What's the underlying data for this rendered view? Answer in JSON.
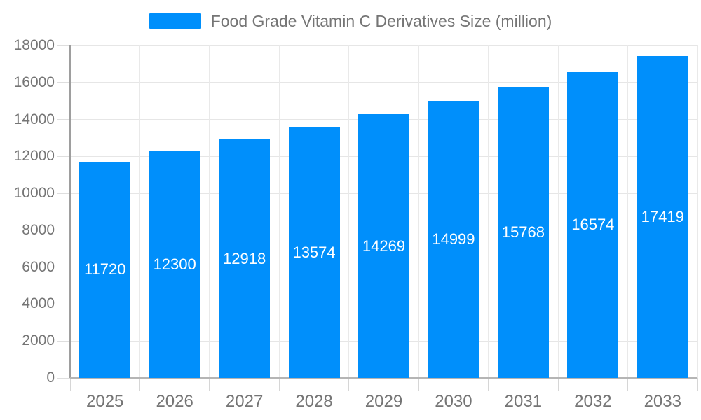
{
  "chart_data": {
    "type": "bar",
    "title": "Food Grade Vitamin C Derivatives Size (million)",
    "categories": [
      "2025",
      "2026",
      "2027",
      "2028",
      "2029",
      "2030",
      "2031",
      "2032",
      "2033"
    ],
    "values": [
      11720,
      12300,
      12918,
      13574,
      14269,
      14999,
      15768,
      16574,
      17419
    ],
    "series": [
      {
        "name": "Food Grade Vitamin C Derivatives Size (million)",
        "values": [
          11720,
          12300,
          12918,
          13574,
          14269,
          14999,
          15768,
          16574,
          17419
        ]
      }
    ],
    "xlabel": "",
    "ylabel": "",
    "ylim": [
      0,
      18000
    ],
    "ytick_step": 2000,
    "ytick_labels": [
      "0",
      "2000",
      "4000",
      "6000",
      "8000",
      "10000",
      "12000",
      "14000",
      "16000",
      "18000"
    ],
    "grid": true,
    "legend_position": "top",
    "value_labels": "centered-in-bar",
    "colors": {
      "bar": "#008FFB",
      "axis_text": "#757575",
      "grid_line": "#e6e6e6",
      "value_label": "#ffffff",
      "background": "#ffffff"
    }
  }
}
